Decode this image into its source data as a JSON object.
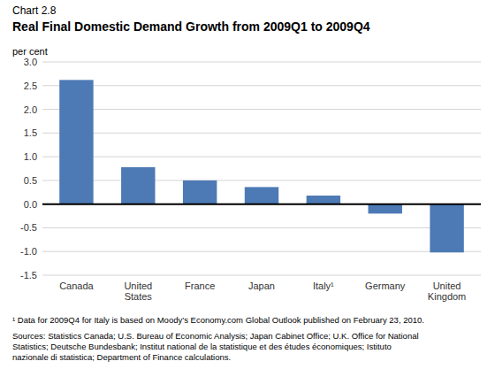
{
  "chart_data": {
    "type": "bar",
    "chart_label": "Chart 2.8",
    "title": "Real Final Domestic Demand Growth from 2009Q1 to 2009Q4",
    "ylabel": "per cent",
    "categories": [
      "Canada",
      "United\nStates",
      "France",
      "Japan",
      "Italy¹",
      "Germany",
      "United\nKingdom"
    ],
    "values": [
      2.62,
      0.78,
      0.5,
      0.36,
      0.18,
      -0.2,
      -1.02
    ],
    "color": "#4d7ab5",
    "ylim": [
      -1.5,
      3.0
    ],
    "yticks": [
      -1.5,
      {
        "value": -1.0,
        "label": "-1.0"
      },
      -0.5,
      {
        "value": 0.0,
        "label": "0.0"
      },
      0.5,
      {
        "value": 1.0,
        "label": "1.0"
      },
      1.5,
      {
        "value": 2.0,
        "label": "2.0"
      },
      2.5,
      {
        "value": 3.0,
        "label": "3.0"
      }
    ],
    "grid": true,
    "footnotes": [
      "¹ Data for 2009Q4 for Italy is based on Moody’s Economy.com Global Outlook published on February 23, 2010.",
      "Sources: Statistics Canada; U.S. Bureau of Economic Analysis; Japan Cabinet Office; U.K. Office for National\nStatistics; Deutsche Bundesbank; Institut national de la statistique et des études économiques; Istituto\nnazionale di statistica; Department of Finance calculations."
    ]
  }
}
